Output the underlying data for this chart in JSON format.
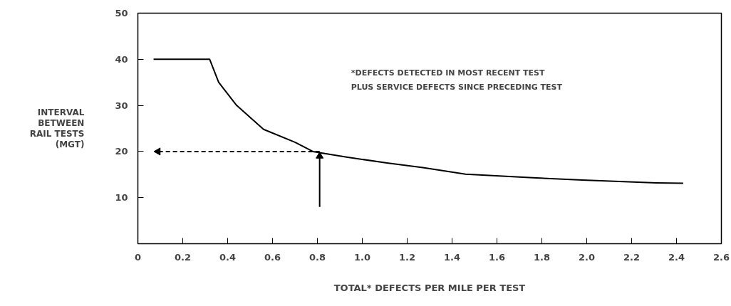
{
  "chart_data": {
    "type": "line",
    "xlabel": "TOTAL* DEFECTS PER MILE PER TEST",
    "ylabel": "INTERVAL\nBETWEEN\nRAIL TESTS\n(MGT)",
    "annotations": [
      "*DEFECTS  DETECTED IN MOST RECENT TEST\nPLUS SERVICE DEFECTS SINCE PRECEDING TEST"
    ],
    "xlim": [
      0,
      2.6
    ],
    "ylim": [
      0,
      50
    ],
    "xticks": [
      0,
      0.2,
      0.4,
      0.6,
      0.8,
      {
        "value": 1.0,
        "label": "1.0"
      },
      1.2,
      1.4,
      1.6,
      1.8,
      {
        "value": 2.0,
        "label": "2.0"
      },
      2.2,
      2.4,
      2.6
    ],
    "yticks": [
      10,
      20,
      30,
      40,
      50
    ],
    "grid": false,
    "series": [
      {
        "color": "#000000",
        "line_style": "solid",
        "marker": "none",
        "x": [
          0.07,
          0.32,
          0.36,
          0.44,
          0.56,
          0.7,
          0.78,
          0.93,
          1.11,
          1.27,
          1.46,
          1.76,
          1.98,
          2.31,
          2.43
        ],
        "values": [
          40,
          40,
          35,
          30,
          24.8,
          22,
          20,
          18.8,
          17.5,
          16.5,
          15.1,
          14.3,
          13.8,
          13.2,
          13.1
        ]
      },
      {
        "color": "#000000",
        "line_style": "dashed",
        "marker": "triangle",
        "x": [
          0.81,
          0.09
        ],
        "values": [
          20,
          20
        ]
      },
      {
        "color": "#000000",
        "line_style": "solid",
        "marker": "triangle",
        "x": [
          0.81,
          0.81
        ],
        "values": [
          8,
          19
        ]
      }
    ]
  }
}
